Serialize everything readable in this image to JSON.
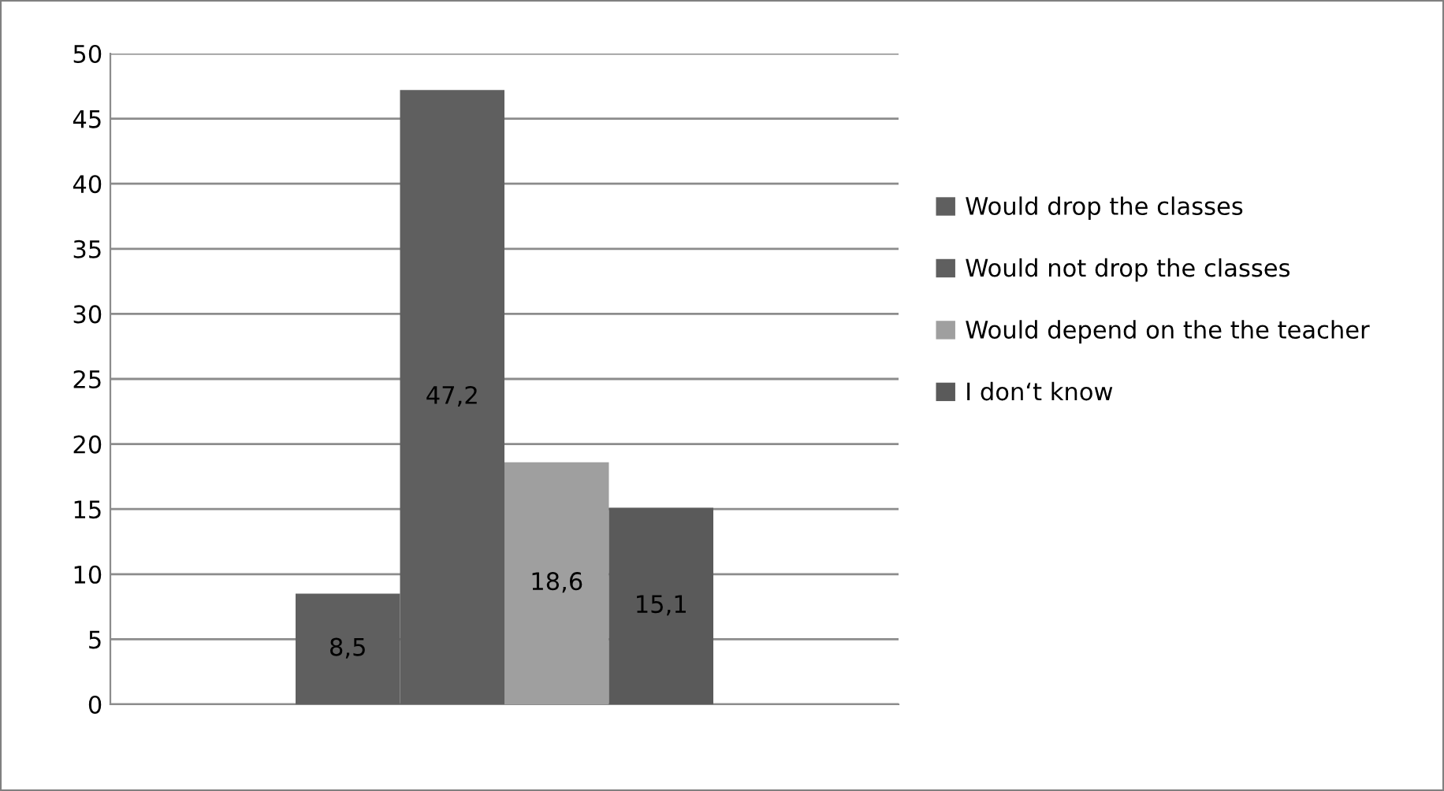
{
  "chart_data": {
    "type": "bar",
    "categories": [
      null
    ],
    "series": [
      {
        "name": "Would drop the classes",
        "color": "#5f5f5f",
        "values": [
          8.5
        ],
        "value_labels": [
          "8,5"
        ]
      },
      {
        "name": "Would not drop the classes",
        "color": "#5f5f5f",
        "values": [
          47.2
        ],
        "value_labels": [
          "47,2"
        ]
      },
      {
        "name": "Would depend on the the teacher",
        "color": "#9f9f9f",
        "values": [
          18.6
        ],
        "value_labels": [
          "18,6"
        ]
      },
      {
        "name": "I don‘t know",
        "color": "#5a5a5a",
        "values": [
          15.1
        ],
        "value_labels": [
          "15,1"
        ]
      }
    ],
    "ylim": [
      0,
      50
    ],
    "yticks": [
      0,
      5,
      10,
      15,
      20,
      25,
      30,
      35,
      40,
      45,
      50
    ],
    "grid": "y",
    "legend": "right"
  }
}
